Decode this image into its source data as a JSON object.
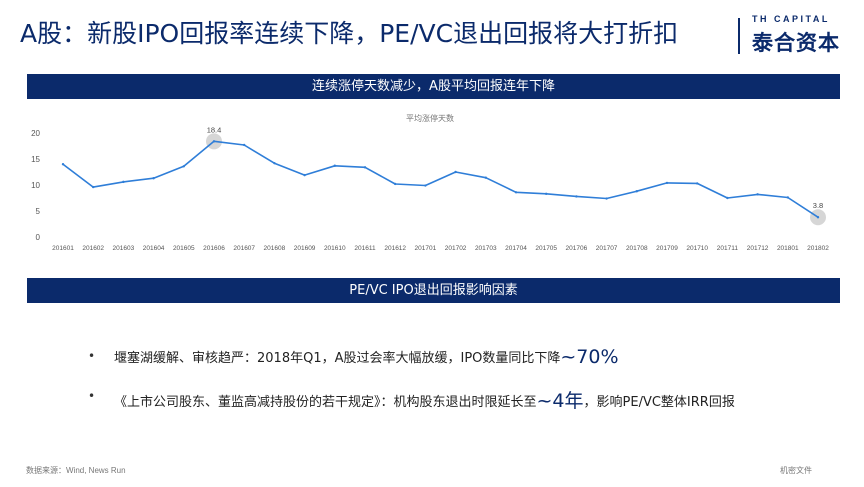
{
  "header": {
    "title": "A股：新股IPO回报率连续下降，PE/VC退出回报将大打折扣",
    "brand_en": "TH CAPITAL",
    "brand_cn": "泰合资本"
  },
  "banner_top": "连续涨停天数减少，A股平均回报连年下降",
  "banner_mid": "PE/VC IPO退出回报影响因素",
  "chart_data": {
    "type": "line",
    "title": "平均涨停天数",
    "x": [
      "201601",
      "201602",
      "201603",
      "201604",
      "201605",
      "201606",
      "201607",
      "201608",
      "201609",
      "201610",
      "201611",
      "201612",
      "201701",
      "201702",
      "201703",
      "201704",
      "201705",
      "201706",
      "201707",
      "201708",
      "201709",
      "201710",
      "201711",
      "201712",
      "201801",
      "201802"
    ],
    "values": [
      14.0,
      9.6,
      10.6,
      11.3,
      13.6,
      18.4,
      17.7,
      14.2,
      11.9,
      13.7,
      13.4,
      10.2,
      9.9,
      12.5,
      11.4,
      8.6,
      8.3,
      7.8,
      7.4,
      8.8,
      10.4,
      10.3,
      7.5,
      8.2,
      7.6,
      3.8
    ],
    "ylim": [
      0,
      20
    ],
    "yticks": [
      "0",
      "5",
      "10",
      "15",
      "20"
    ],
    "annotations": [
      {
        "label": "18.4",
        "index": 5
      },
      {
        "label": "3.8",
        "index": 25
      }
    ],
    "series_color": "#2f7ed8",
    "grid": false
  },
  "bullets": [
    {
      "text": "堰塞湖缓解、审核趋严：2018年Q1，A股过会率大幅放缓，IPO数量同比下降",
      "highlight": "~70%",
      "suffix": ""
    },
    {
      "text": "《上市公司股东、董监高减持股份的若干规定》：机构股东退出时限延长至",
      "highlight": "~4年",
      "suffix": "，影响PE/VC整体IRR回报"
    }
  ],
  "footer": {
    "source": "数据来源：Wind, News Run",
    "confidential": "机密文件"
  }
}
